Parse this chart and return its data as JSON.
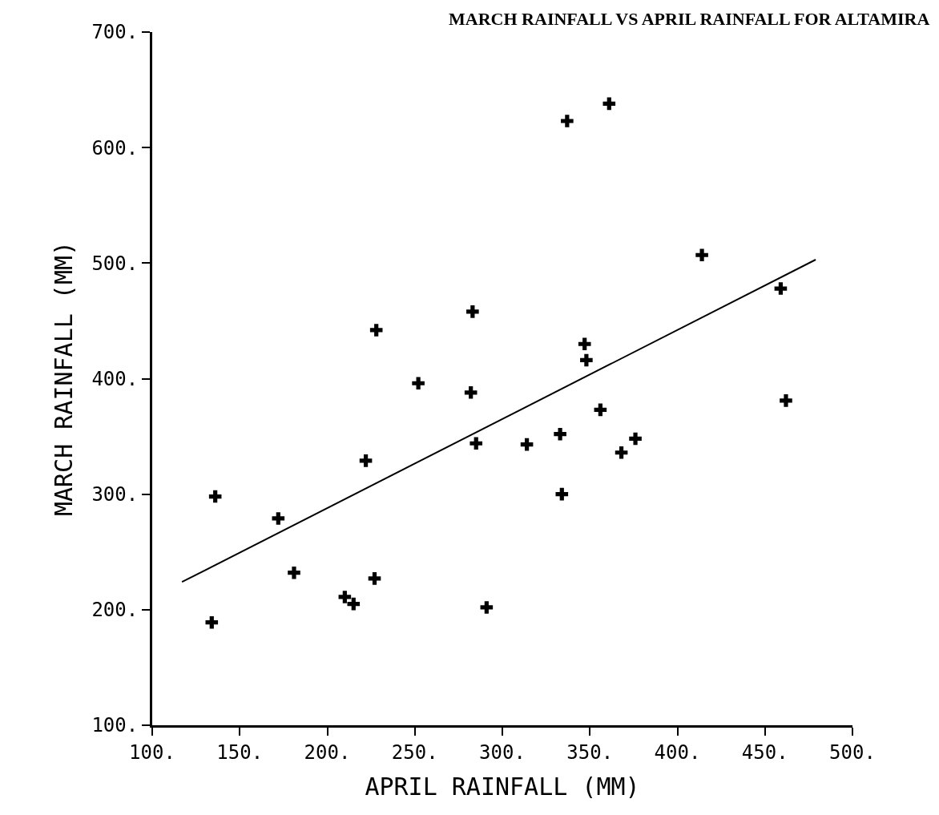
{
  "chart_data": {
    "type": "scatter",
    "title": "MARCH RAINFALL VS APRIL RAINFALL FOR ALTAMIRA",
    "xlabel": "APRIL RAINFALL (MM)",
    "ylabel": "MARCH RAINFALL (MM)",
    "series": [
      {
        "color": "#000000",
        "marker": "cross",
        "x": [
          136,
          134,
          172,
          181,
          222,
          210,
          215,
          227,
          285,
          228,
          252,
          283,
          282,
          337,
          361,
          414,
          459,
          347,
          348,
          356,
          462,
          333,
          314,
          368,
          376,
          334,
          291
        ],
        "values": [
          298,
          189,
          279,
          232,
          329,
          211,
          205,
          227,
          344,
          442,
          396,
          458,
          388,
          623,
          638,
          507,
          478,
          430,
          416,
          373,
          381,
          352,
          343,
          336,
          348,
          300,
          202
        ]
      },
      {
        "type": "line",
        "color": "#000000",
        "marker": "none",
        "line_style": "solid",
        "x": [
          117,
          479
        ],
        "values": [
          224,
          503
        ]
      }
    ],
    "xlim": [
      100,
      500
    ],
    "ylim": [
      100,
      700
    ],
    "xticks": [
      {
        "value": 100,
        "label": "100."
      },
      {
        "value": 150,
        "label": "150."
      },
      {
        "value": 200,
        "label": "200."
      },
      {
        "value": 250,
        "label": "250."
      },
      {
        "value": 300,
        "label": "300."
      },
      {
        "value": 350,
        "label": "350."
      },
      {
        "value": 400,
        "label": "400."
      },
      {
        "value": 450,
        "label": "450."
      },
      {
        "value": 500,
        "label": "500."
      }
    ],
    "yticks": [
      {
        "value": 100,
        "label": "100."
      },
      {
        "value": 200,
        "label": "200."
      },
      {
        "value": 300,
        "label": "300."
      },
      {
        "value": 400,
        "label": "400."
      },
      {
        "value": 500,
        "label": "500."
      },
      {
        "value": 600,
        "label": "600."
      },
      {
        "value": 700,
        "label": "700."
      }
    ],
    "tick_labels": "xy"
  }
}
